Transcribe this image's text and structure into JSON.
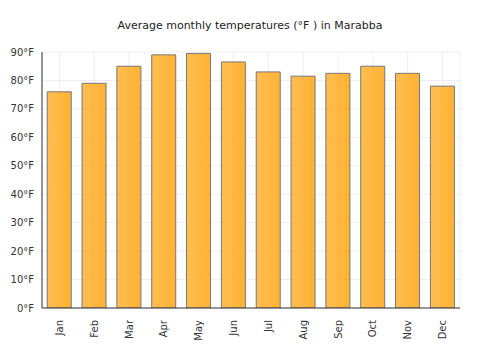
{
  "chart_data": {
    "type": "bar",
    "title": "Average monthly temperatures (°F ) in Marabba",
    "categories": [
      "Jan",
      "Feb",
      "Mar",
      "Apr",
      "May",
      "Jun",
      "Jul",
      "Aug",
      "Sep",
      "Oct",
      "Nov",
      "Dec"
    ],
    "values": [
      76,
      79,
      85,
      89,
      89.5,
      86.5,
      83,
      81.5,
      82.5,
      85,
      82.5,
      78
    ],
    "color": "#ffb233",
    "ylim": [
      0,
      90
    ],
    "yticks": [
      {
        "value": 0,
        "label": "0°F"
      },
      {
        "value": 10,
        "label": "10°F"
      },
      {
        "value": 20,
        "label": "20°F"
      },
      {
        "value": 30,
        "label": "30°F"
      },
      {
        "value": 40,
        "label": "40°F"
      },
      {
        "value": 50,
        "label": "50°F"
      },
      {
        "value": 60,
        "label": "60°F"
      },
      {
        "value": 70,
        "label": "70°F"
      },
      {
        "value": 80,
        "label": "80°F"
      },
      {
        "value": 90,
        "label": "90°F"
      }
    ],
    "grid": true
  }
}
